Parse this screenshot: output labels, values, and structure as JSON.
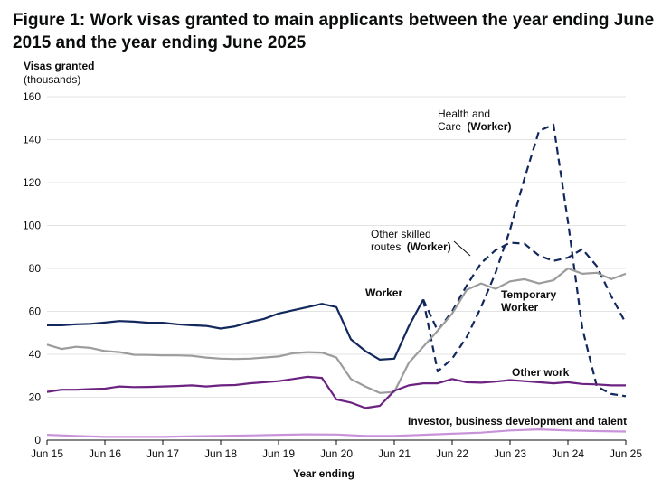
{
  "chart_data": {
    "type": "line",
    "title": "Figure 1: Work visas granted to main applicants between the year ending June 2015 and the year ending June 2025",
    "ylabel": "Visas granted",
    "ylabel_unit": "(thousands)",
    "xlabel": "Year ending",
    "ylim": [
      0,
      160
    ],
    "yticks": [
      "0",
      "20",
      "40",
      "60",
      "80",
      "100",
      "120",
      "140",
      "160"
    ],
    "xticks": [
      "Jun 15",
      "Jun 16",
      "Jun 17",
      "Jun 18",
      "Jun 19",
      "Jun 20",
      "Jun 21",
      "Jun 22",
      "Jun 23",
      "Jun 24",
      "Jun 25"
    ],
    "grid": true,
    "colors": {
      "worker": "#12285d",
      "temporary": "#9c9c9c",
      "other": "#6b2280",
      "investor": "#c993da"
    },
    "series": [
      {
        "key": "worker",
        "name": "Worker",
        "style": "solid",
        "x": [
          0,
          0.25,
          0.5,
          0.75,
          1,
          1.25,
          1.5,
          1.75,
          2,
          2.25,
          2.5,
          2.75,
          3,
          3.25,
          3.5,
          3.75,
          4,
          4.25,
          4.5,
          4.75,
          5,
          5.25,
          5.5,
          5.75,
          6,
          6.25,
          6.5
        ],
        "values": [
          53.5,
          53.5,
          54,
          54.2,
          54.8,
          55.5,
          55.2,
          54.7,
          54.7,
          54,
          53.5,
          53.2,
          52,
          53,
          55,
          56.5,
          59,
          60.5,
          62,
          63.5,
          62,
          47,
          41.5,
          37.5,
          38,
          53,
          65.5
        ]
      },
      {
        "key": "worker",
        "name": "Health and Care (Worker)",
        "style": "dashed",
        "x": [
          6.5,
          6.75,
          7,
          7.25,
          7.5,
          7.75,
          8,
          8.25,
          8.5,
          8.75,
          9,
          9.25,
          9.5,
          9.75,
          10
        ],
        "values": [
          65.5,
          32,
          38,
          48,
          62,
          78,
          98,
          122,
          144,
          147,
          102,
          52,
          25,
          21.5,
          20.5
        ]
      },
      {
        "key": "worker",
        "name": "Other skilled routes (Worker)",
        "style": "dashed",
        "x": [
          6.5,
          6.75,
          7,
          7.25,
          7.5,
          7.75,
          8,
          8.25,
          8.5,
          8.75,
          9,
          9.25,
          9.5,
          9.75,
          10
        ],
        "values": [
          65.5,
          51,
          60,
          72,
          82.5,
          88.5,
          92,
          91.5,
          86,
          83.5,
          85,
          89,
          81,
          67,
          54.5
        ]
      },
      {
        "key": "temporary",
        "name": "Temporary Worker",
        "style": "solid",
        "x": [
          0,
          0.25,
          0.5,
          0.75,
          1,
          1.25,
          1.5,
          1.75,
          2,
          2.25,
          2.5,
          2.75,
          3,
          3.25,
          3.5,
          3.75,
          4,
          4.25,
          4.5,
          4.75,
          5,
          5.25,
          5.5,
          5.75,
          6,
          6.25,
          6.5,
          6.75,
          7,
          7.25,
          7.5,
          7.75,
          8,
          8.25,
          8.5,
          8.75,
          9,
          9.25,
          9.5,
          9.75,
          10
        ],
        "values": [
          44.5,
          42.5,
          43.5,
          43,
          41.5,
          41,
          39.8,
          39.7,
          39.5,
          39.5,
          39.3,
          38.5,
          38,
          37.8,
          38,
          38.5,
          39,
          40.5,
          41,
          40.8,
          38.5,
          28.5,
          25,
          22,
          22.5,
          36,
          43.5,
          51,
          59,
          70,
          73,
          70.5,
          74,
          75,
          73,
          74.5,
          80,
          77.5,
          78,
          75,
          77.5
        ]
      },
      {
        "key": "other",
        "name": "Other work",
        "style": "solid",
        "x": [
          0,
          0.25,
          0.5,
          0.75,
          1,
          1.25,
          1.5,
          1.75,
          2,
          2.25,
          2.5,
          2.75,
          3,
          3.25,
          3.5,
          3.75,
          4,
          4.25,
          4.5,
          4.75,
          5,
          5.25,
          5.5,
          5.75,
          6,
          6.25,
          6.5,
          6.75,
          7,
          7.25,
          7.5,
          7.75,
          8,
          8.25,
          8.5,
          8.75,
          9,
          9.25,
          9.5,
          9.75,
          10
        ],
        "values": [
          22.5,
          23.5,
          23.5,
          23.8,
          24,
          25,
          24.7,
          24.8,
          25,
          25.2,
          25.5,
          25,
          25.5,
          25.7,
          26.5,
          27,
          27.5,
          28.5,
          29.5,
          29,
          19,
          17.5,
          15,
          16,
          23,
          25.5,
          26.5,
          26.5,
          28.5,
          27,
          26.8,
          27.3,
          28,
          27.5,
          27,
          26.5,
          27,
          26.2,
          26,
          25.5,
          25.5
        ]
      },
      {
        "key": "investor",
        "name": "Investor, business development and talent",
        "style": "solid",
        "x": [
          0,
          0.5,
          1,
          1.5,
          2,
          2.5,
          3,
          3.5,
          4,
          4.5,
          5,
          5.5,
          6,
          6.5,
          7,
          7.5,
          8,
          8.5,
          9,
          9.5,
          10
        ],
        "values": [
          2.5,
          2,
          1.5,
          1.5,
          1.5,
          1.8,
          2,
          2.2,
          2.5,
          2.7,
          2.6,
          2,
          2,
          2.5,
          3,
          3.5,
          4.5,
          5,
          4.5,
          4.2,
          4
        ]
      }
    ],
    "annotations": {
      "worker": "Worker",
      "health_care_line1": "Health and",
      "health_care_line2_plain": "Care ",
      "health_care_line2_bold": "(Worker)",
      "other_skilled_line1": "Other skilled",
      "other_skilled_line2_plain": "routes ",
      "other_skilled_line2_bold": "(Worker)",
      "temporary_line1": "Temporary",
      "temporary_line2": "Worker",
      "other_work": "Other work",
      "investor": "Investor, business development and talent"
    }
  }
}
